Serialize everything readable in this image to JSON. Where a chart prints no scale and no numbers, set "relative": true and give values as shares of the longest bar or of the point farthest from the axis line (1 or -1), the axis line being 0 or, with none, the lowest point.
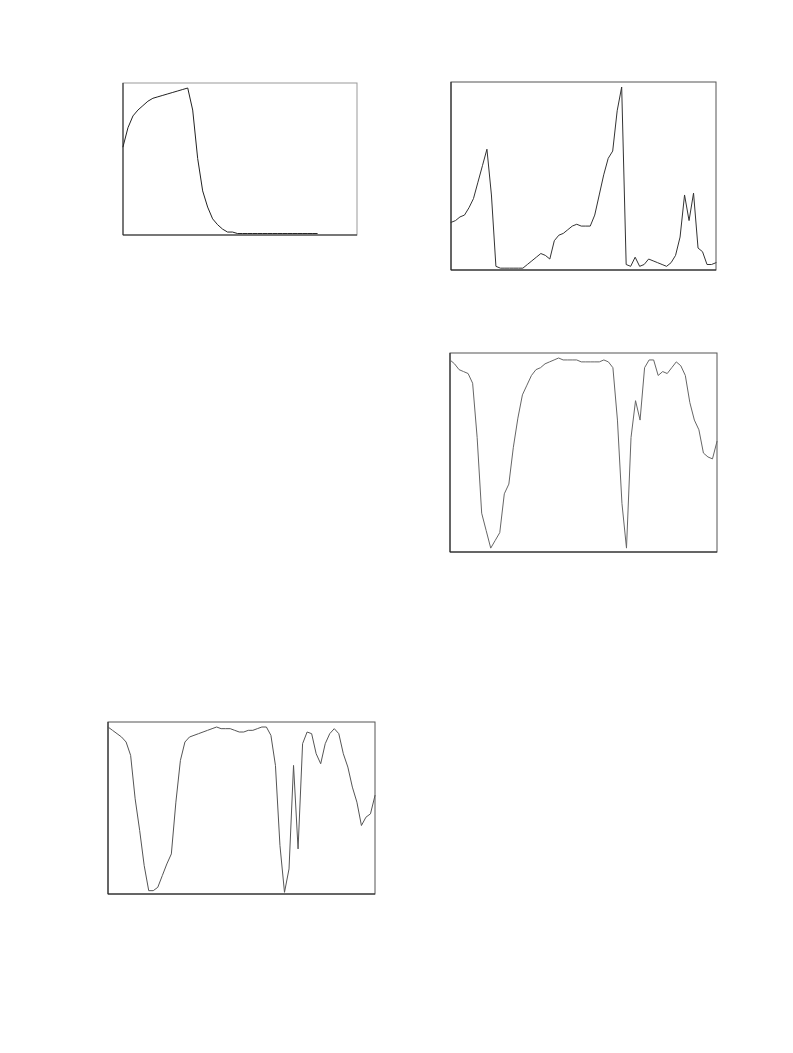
{
  "chart_data": [
    {
      "type": "line",
      "relative": true,
      "color": "#222222",
      "categories": [
        null,
        null,
        null,
        null,
        null,
        null,
        null,
        null,
        null,
        null,
        null,
        null,
        null,
        null,
        null,
        null,
        null,
        null,
        null,
        null,
        null,
        null,
        null,
        null,
        null,
        null,
        null,
        null,
        null,
        null,
        null,
        null,
        null,
        null,
        null,
        null,
        null,
        null,
        null,
        null,
        null,
        null,
        null,
        null,
        null,
        null,
        null,
        null
      ],
      "values": [
        0.6,
        0.73,
        0.81,
        0.85,
        0.88,
        0.91,
        0.93,
        0.94,
        0.95,
        0.96,
        0.97,
        0.98,
        0.99,
        1,
        0.85,
        0.52,
        0.3,
        0.19,
        0.11,
        0.07,
        0.04,
        0.02,
        0.02,
        0.01,
        0.01,
        0.01,
        0.01,
        0.01,
        0.01,
        0.01,
        0.01,
        0.01,
        0.01,
        0.01,
        0.01,
        0.01,
        0.01,
        0.01,
        0.01,
        0.01,
        null,
        null,
        null,
        null,
        null,
        null,
        null,
        null
      ]
    },
    {
      "type": "line",
      "relative": true,
      "color": "#333333",
      "categories": [
        null,
        null,
        null,
        null,
        null,
        null,
        null,
        null,
        null,
        null,
        null,
        null,
        null,
        null,
        null,
        null,
        null,
        null,
        null,
        null,
        null,
        null,
        null,
        null,
        null,
        null,
        null,
        null,
        null,
        null,
        null,
        null,
        null,
        null,
        null,
        null,
        null,
        null,
        null,
        null,
        null,
        null,
        null,
        null,
        null,
        null,
        null,
        null,
        null,
        null,
        null,
        null,
        null,
        null,
        null,
        null,
        null,
        null,
        null,
        null
      ],
      "values": [
        0.26,
        0.27,
        0.29,
        0.3,
        0.34,
        0.39,
        0.48,
        0.57,
        0.66,
        0.41,
        0.02,
        0.01,
        0.01,
        0.01,
        0.01,
        0.01,
        0.01,
        0.03,
        0.05,
        0.07,
        0.09,
        0.08,
        0.06,
        0.16,
        0.19,
        0.2,
        0.22,
        0.24,
        0.25,
        0.24,
        0.24,
        0.24,
        0.3,
        0.41,
        0.52,
        0.61,
        0.65,
        0.87,
        1,
        0.03,
        0.02,
        0.07,
        0.02,
        0.03,
        0.06,
        0.05,
        0.04,
        0.03,
        0.02,
        0.04,
        0.08,
        0.18,
        0.41,
        0.27,
        0.42,
        0.12,
        0.1,
        0.03,
        0.03,
        0.04
      ]
    },
    {
      "type": "line",
      "relative": true,
      "color": "#666666",
      "categories": [
        null,
        null,
        null,
        null,
        null,
        null,
        null,
        null,
        null,
        null,
        null,
        null,
        null,
        null,
        null,
        null,
        null,
        null,
        null,
        null,
        null,
        null,
        null,
        null,
        null,
        null,
        null,
        null,
        null,
        null,
        null,
        null,
        null,
        null,
        null,
        null,
        null,
        null,
        null,
        null,
        null,
        null,
        null,
        null,
        null,
        null,
        null,
        null,
        null,
        null,
        null,
        null,
        null,
        null,
        null,
        null,
        null,
        null,
        null,
        null
      ],
      "values": [
        0.99,
        0.97,
        0.94,
        0.93,
        0.92,
        0.87,
        0.59,
        0.2,
        0.11,
        0.02,
        0.06,
        0.1,
        0.3,
        0.35,
        0.54,
        0.69,
        0.81,
        0.86,
        0.91,
        0.94,
        0.95,
        0.97,
        0.98,
        0.99,
        1,
        0.99,
        0.99,
        0.99,
        0.99,
        0.98,
        0.98,
        0.98,
        0.98,
        0.98,
        0.99,
        0.98,
        0.95,
        0.68,
        0.25,
        0.02,
        0.59,
        0.78,
        0.68,
        0.95,
        0.99,
        0.99,
        0.91,
        0.93,
        0.92,
        0.95,
        0.98,
        0.96,
        0.91,
        0.77,
        0.68,
        0.63,
        0.51,
        0.49,
        0.48,
        0.57
      ]
    },
    {
      "type": "line",
      "relative": true,
      "color": "#555555",
      "categories": [
        null,
        null,
        null,
        null,
        null,
        null,
        null,
        null,
        null,
        null,
        null,
        null,
        null,
        null,
        null,
        null,
        null,
        null,
        null,
        null,
        null,
        null,
        null,
        null,
        null,
        null,
        null,
        null,
        null,
        null,
        null,
        null,
        null,
        null,
        null,
        null,
        null,
        null,
        null,
        null,
        null,
        null,
        null,
        null,
        null,
        null,
        null,
        null,
        null,
        null,
        null,
        null,
        null,
        null,
        null,
        null,
        null,
        null,
        null,
        null
      ],
      "values": [
        1,
        0.98,
        0.96,
        0.94,
        0.91,
        0.83,
        0.57,
        0.38,
        0.17,
        0.02,
        0.02,
        0.04,
        0.11,
        0.18,
        0.24,
        0.55,
        0.8,
        0.91,
        0.94,
        0.95,
        0.96,
        0.97,
        0.98,
        0.99,
        1,
        0.99,
        0.99,
        0.99,
        0.98,
        0.97,
        0.97,
        0.98,
        0.98,
        0.99,
        1,
        1,
        0.95,
        0.77,
        0.29,
        0.01,
        0.15,
        0.77,
        0.27,
        0.9,
        0.97,
        0.96,
        0.84,
        0.78,
        0.9,
        0.96,
        0.99,
        0.96,
        0.84,
        0.76,
        0.64,
        0.55,
        0.41,
        0.46,
        0.48,
        0.59
      ]
    }
  ]
}
